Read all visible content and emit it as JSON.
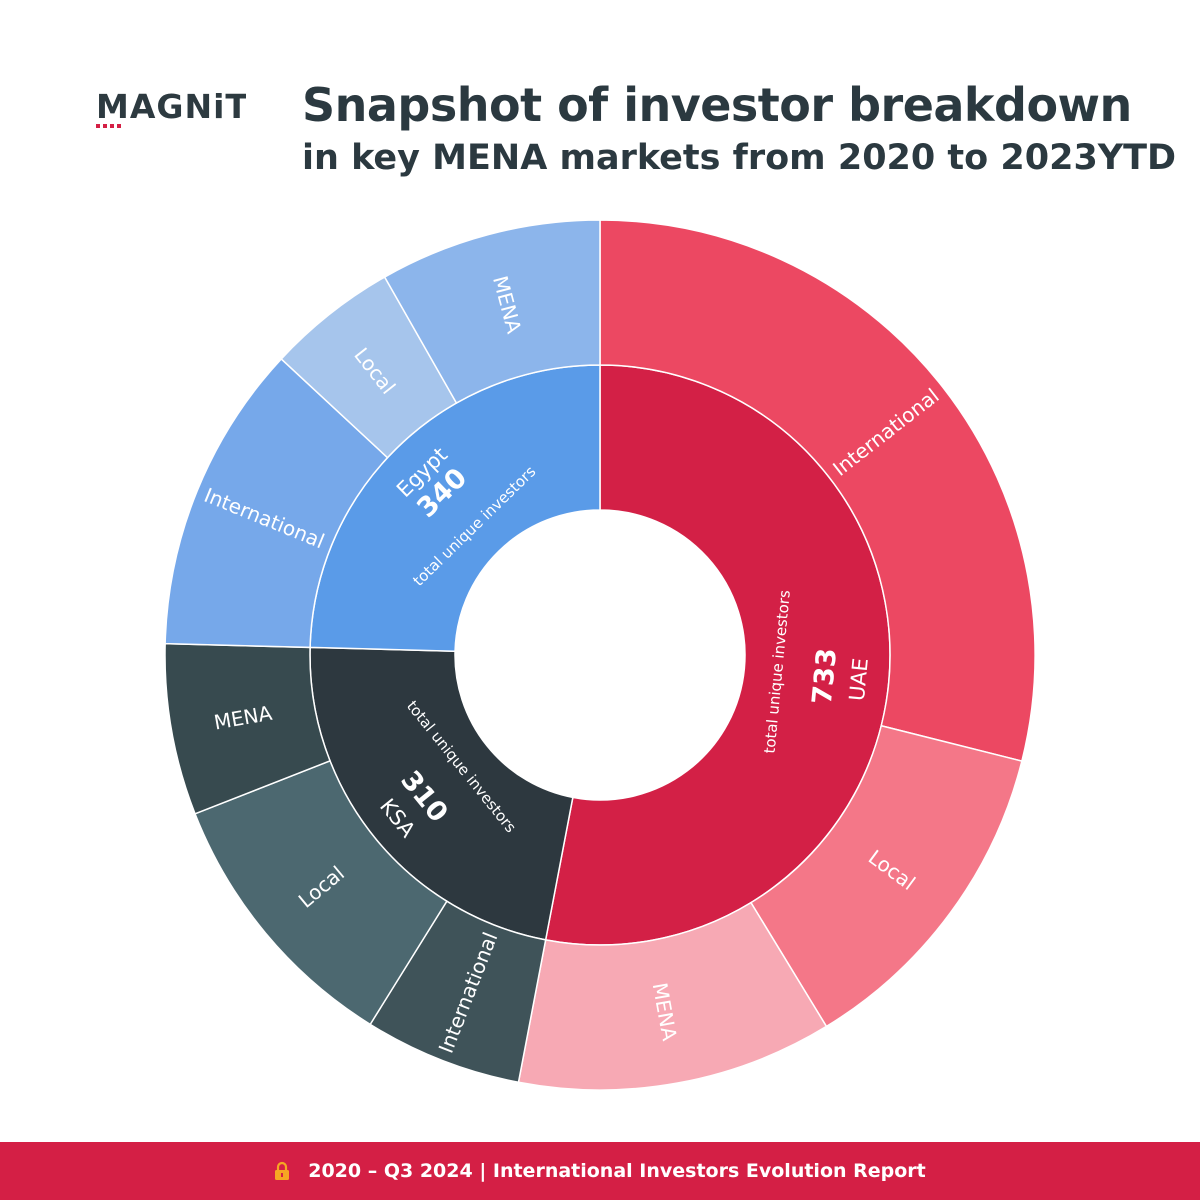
{
  "brand": {
    "logo_text": "MAGNiTT",
    "logo_color": "#2d3a40",
    "logo_accent": "#d41f45"
  },
  "header": {
    "title": "Snapshot of investor breakdown",
    "subtitle": "in key MENA markets from 2020 to 2023YTD"
  },
  "footer": {
    "icon": "lock-icon",
    "text": "2020 – Q3 2024 | International Investors Evolution Report",
    "background": "#d41f45"
  },
  "chart_data": {
    "type": "sunburst",
    "caption": "total unique investors",
    "markets": [
      {
        "name": "UAE",
        "total": 733,
        "color": "#d32046",
        "children": [
          {
            "name": "International",
            "value": 400,
            "color": "#ec4862"
          },
          {
            "name": "Local",
            "value": 171,
            "color": "#f47788"
          },
          {
            "name": "MENA",
            "value": 162,
            "color": "#f7a9b4"
          }
        ]
      },
      {
        "name": "KSA",
        "total": 310,
        "color": "#2d383f",
        "children": [
          {
            "name": "International",
            "value": 81,
            "color": "#3f5359"
          },
          {
            "name": "Local",
            "value": 141,
            "color": "#4c6870"
          },
          {
            "name": "MENA",
            "value": 88,
            "color": "#374a4f"
          }
        ]
      },
      {
        "name": "Egypt",
        "total": 340,
        "color": "#5a9be8",
        "children": [
          {
            "name": "International",
            "value": 159,
            "color": "#76a8ea"
          },
          {
            "name": "Local",
            "value": 67,
            "color": "#a6c5ec"
          },
          {
            "name": "MENA",
            "value": 114,
            "color": "#8cb5eb"
          }
        ]
      }
    ]
  }
}
